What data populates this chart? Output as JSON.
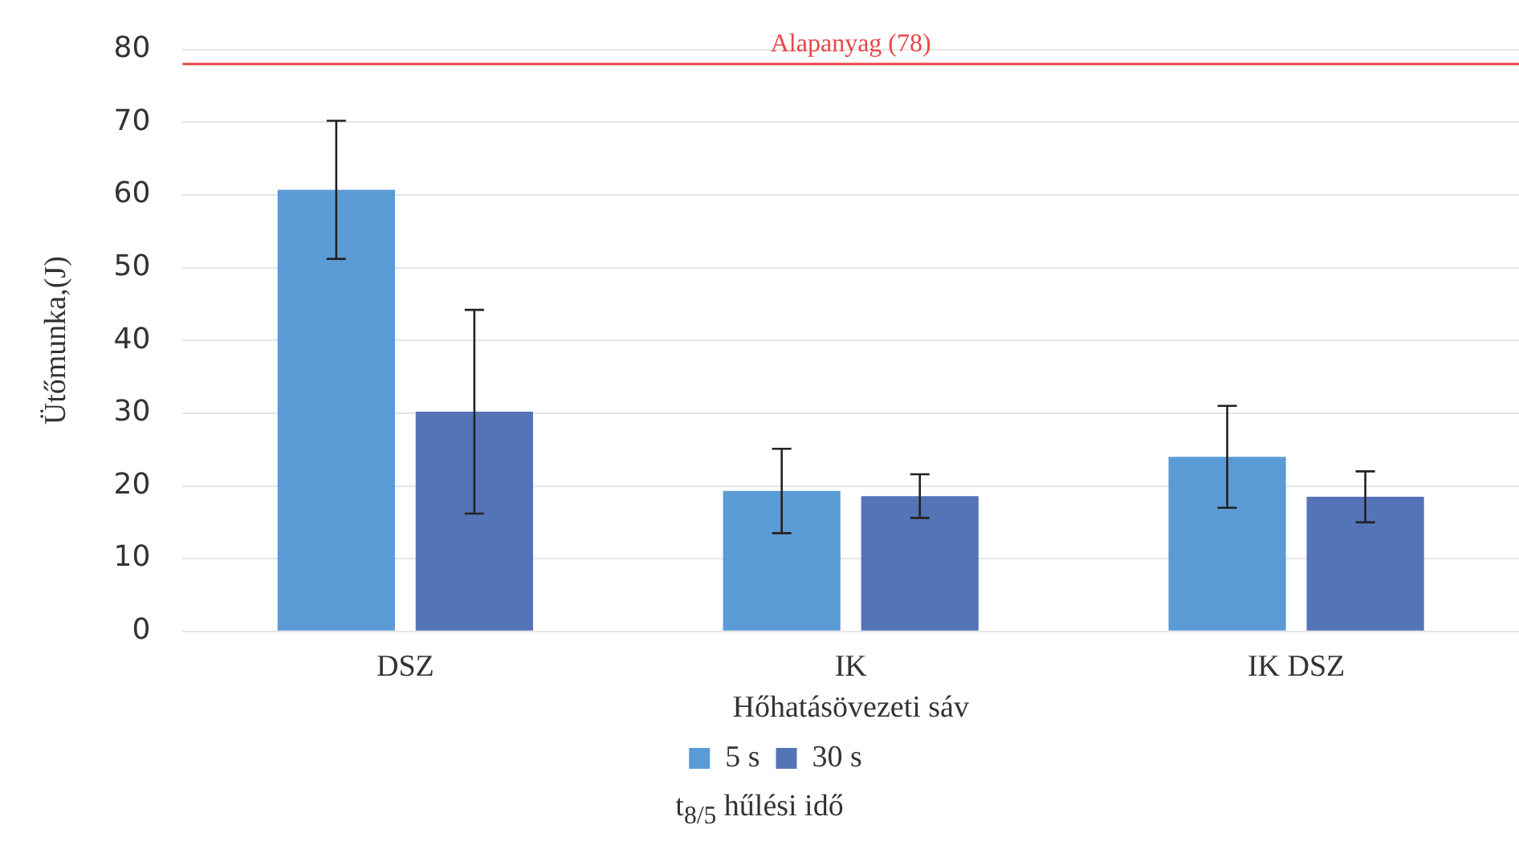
{
  "chart_data": {
    "type": "bar",
    "xlabel": "Hőhatásövezeti sáv",
    "ylabel": "Ütőmunka,(J)",
    "legend_title": "t$_{8/5}$ hűlési idő",
    "categories": [
      "DSZ",
      "IK",
      "IK DSZ"
    ],
    "series": [
      {
        "name": "5 s",
        "color": "#5b9bd5",
        "values": [
          60.7,
          19.3,
          24
        ],
        "errors": [
          9.5,
          5.8,
          7
        ]
      },
      {
        "name": "30 s",
        "color": "#5574b8",
        "values": [
          30.2,
          18.6,
          18.5
        ],
        "errors": [
          14,
          3,
          3.5
        ]
      }
    ],
    "ylim": [
      0,
      80
    ],
    "yticks": [
      0,
      10,
      20,
      30,
      40,
      50,
      60,
      70,
      80
    ],
    "grid": "y",
    "legend": "bottom",
    "ref_lines": [
      {
        "axis": "y",
        "value": 78,
        "label": "Alapanyag (78)",
        "color": "#e8474a"
      }
    ]
  }
}
